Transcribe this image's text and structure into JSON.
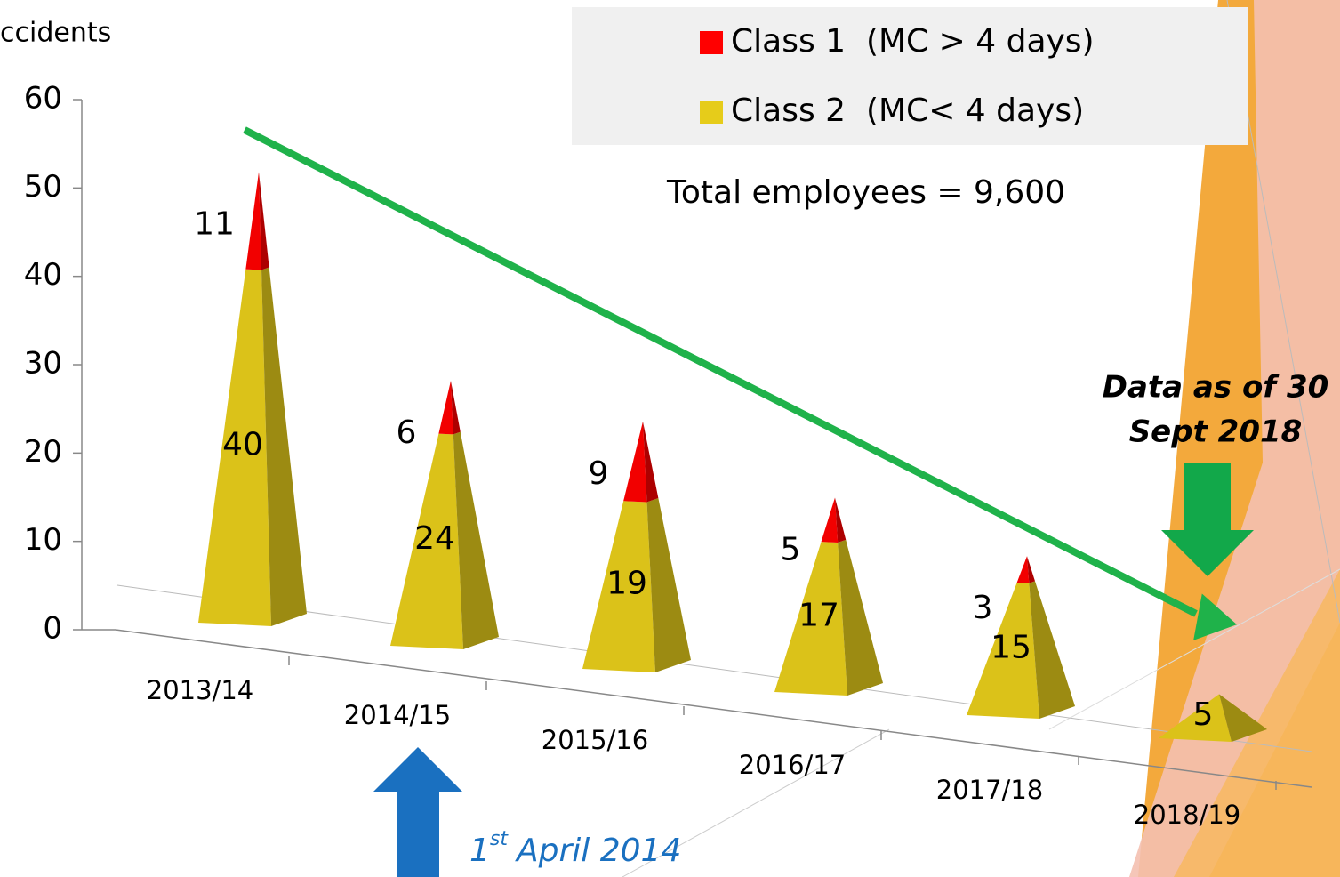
{
  "chart_data": {
    "type": "pyramid-stacked",
    "y_label": "ccidents",
    "categories": [
      "2013/14",
      "2014/15",
      "2015/16",
      "2016/17",
      "2017/18",
      "2018/19"
    ],
    "series": [
      {
        "name": "Class 2  (MC< 4 days)",
        "color": "#e6cc1a",
        "values": [
          40,
          24,
          19,
          17,
          15,
          5
        ]
      },
      {
        "name": "Class 1  (MC > 4 days)",
        "color": "#ff0000",
        "values": [
          11,
          6,
          9,
          5,
          3,
          null
        ]
      }
    ],
    "ylim": [
      0,
      60
    ],
    "yticks": [
      0,
      10,
      20,
      30,
      40,
      50,
      60
    ],
    "total_note": "Total employees = 9,600",
    "data_note": [
      "Data as of 30",
      "Sept 2018"
    ],
    "date_note": {
      "number": "1",
      "suffix": "st",
      "text": "April 2014"
    }
  }
}
